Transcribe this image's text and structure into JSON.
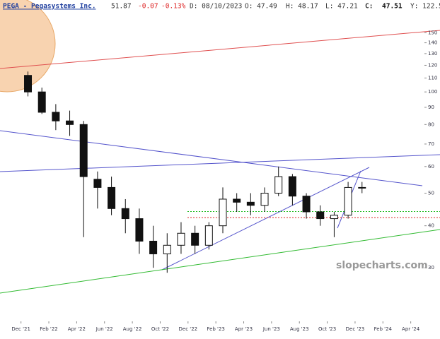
{
  "header": {
    "symbol": "PEGA - Pegasystems Inc.",
    "last": "51.87",
    "change": "-0.07",
    "change_pct": "-0.13%",
    "date": "D: 08/10/2023",
    "open": "O: 47.49",
    "high": "H: 48.17",
    "low": "L: 47.21",
    "close_label": "C:",
    "close": "47.51",
    "y_value": "Y: 122.5"
  },
  "chart_data": {
    "type": "candlestick",
    "watermark": "slopecharts.com",
    "log_scale": true,
    "color": "#111111",
    "x": [
      "2021-12",
      "2022-01",
      "2022-02",
      "2022-03",
      "2022-04",
      "2022-05",
      "2022-06",
      "2022-07",
      "2022-08",
      "2022-09",
      "2022-10",
      "2022-11",
      "2022-12",
      "2023-01",
      "2023-02",
      "2023-03",
      "2023-04",
      "2023-05",
      "2023-06",
      "2023-07",
      "2023-08",
      "2023-09",
      "2023-10",
      "2023-11",
      "2023-12"
    ],
    "open": [
      112,
      100,
      87,
      82,
      80,
      55,
      52,
      45,
      42,
      36,
      33,
      35,
      38,
      35,
      40,
      48,
      47,
      46,
      50,
      56,
      49,
      44,
      42,
      43,
      52
    ],
    "high": [
      115,
      103,
      92,
      88,
      82,
      58,
      56,
      48,
      45,
      40,
      38,
      41,
      40,
      41,
      52,
      50,
      50,
      52,
      60,
      57,
      50,
      46,
      44,
      54,
      54
    ],
    "low": [
      97,
      86,
      77,
      74,
      37,
      45,
      43,
      38,
      33,
      30,
      29,
      33,
      33,
      34,
      38,
      44,
      43,
      44,
      49,
      46,
      42,
      40,
      37,
      42,
      50
    ],
    "close": [
      100,
      87,
      82,
      80,
      56,
      52,
      45,
      42,
      36,
      33,
      35,
      38,
      35,
      40,
      48,
      47,
      46,
      50,
      56,
      49,
      44,
      42,
      43,
      52,
      51.87
    ],
    "hlines": [
      {
        "value": 44.1,
        "color": "#22bb22"
      },
      {
        "value": 42.3,
        "color": "#dd2222"
      }
    ],
    "xlim": [
      "2021-11",
      "2024-06"
    ],
    "xticks": [
      {
        "value": "2021-12",
        "label": "Dec '21"
      },
      {
        "value": "2022-02",
        "label": "Feb '22"
      },
      {
        "value": "2022-04",
        "label": "Apr '22"
      },
      {
        "value": "2022-06",
        "label": "Jun '22"
      },
      {
        "value": "2022-08",
        "label": "Aug '22"
      },
      {
        "value": "2022-10",
        "label": "Oct '22"
      },
      {
        "value": "2022-12",
        "label": "Dec '22"
      },
      {
        "value": "2023-02",
        "label": "Feb '23"
      },
      {
        "value": "2023-04",
        "label": "Apr '23"
      },
      {
        "value": "2023-06",
        "label": "Jun '23"
      },
      {
        "value": "2023-08",
        "label": "Aug '23"
      },
      {
        "value": "2023-10",
        "label": "Oct '23"
      },
      {
        "value": "2023-12",
        "label": "Dec '23"
      },
      {
        "value": "2024-02",
        "label": "Feb '24"
      },
      {
        "value": "2024-04",
        "label": "Apr '24"
      }
    ],
    "ylim": [
      21.3,
      172
    ],
    "yticks": [
      30,
      40,
      50,
      60,
      70,
      80,
      90,
      100,
      110,
      120,
      130,
      140,
      150
    ]
  }
}
